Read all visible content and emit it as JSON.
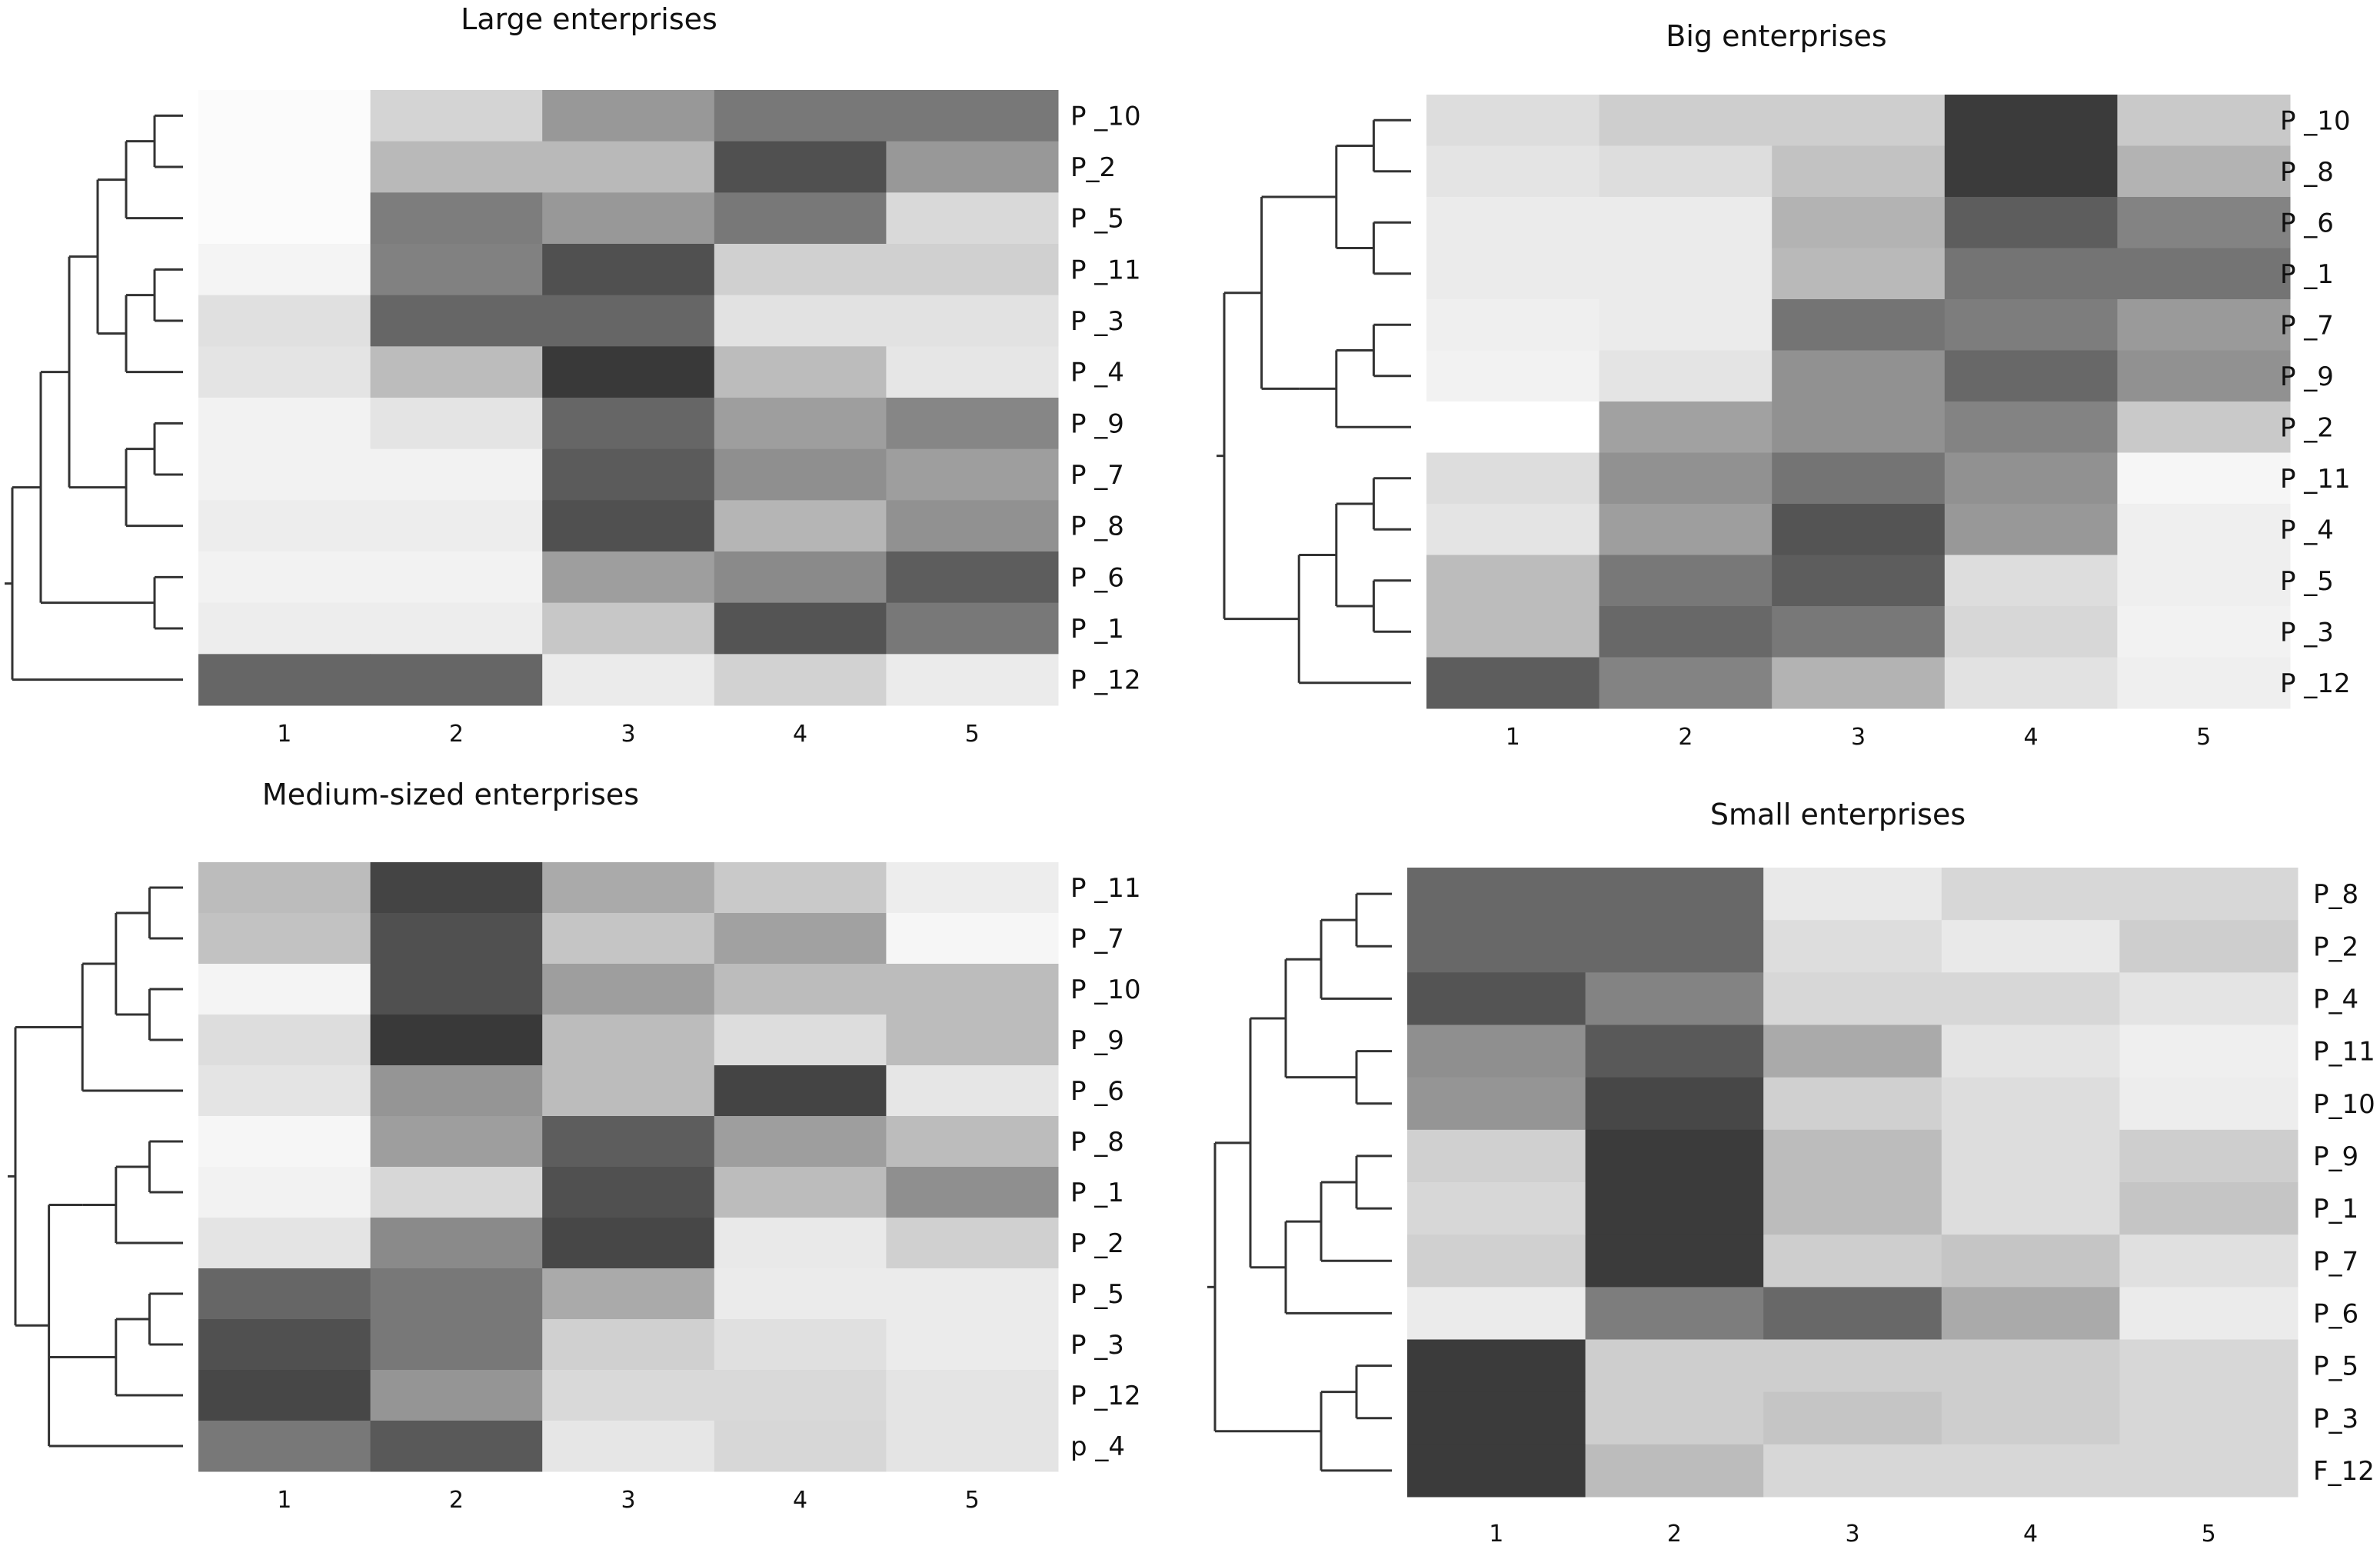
{
  "chart_data": [
    {
      "type": "heatmap",
      "title": "Large enterprises",
      "columns": [
        "1",
        "2",
        "3",
        "4",
        "5"
      ],
      "rows": [
        "P _10",
        "P_2",
        "P _5",
        "P _11",
        "P _3",
        "P _4",
        "P _9",
        "P _7",
        "P _8",
        "P _6",
        "P _1",
        "P _12"
      ],
      "scale": "grayscale intensity 0 (white) to 1 (black)",
      "values": [
        [
          0.02,
          0.19,
          0.46,
          0.6,
          0.6
        ],
        [
          0.02,
          0.31,
          0.31,
          0.78,
          0.46
        ],
        [
          0.02,
          0.58,
          0.46,
          0.6,
          0.17
        ],
        [
          0.05,
          0.56,
          0.78,
          0.21,
          0.21
        ],
        [
          0.14,
          0.68,
          0.68,
          0.13,
          0.13
        ],
        [
          0.12,
          0.3,
          0.88,
          0.3,
          0.11
        ],
        [
          0.06,
          0.12,
          0.68,
          0.43,
          0.54
        ],
        [
          0.06,
          0.06,
          0.73,
          0.5,
          0.43
        ],
        [
          0.08,
          0.08,
          0.78,
          0.33,
          0.49
        ],
        [
          0.06,
          0.06,
          0.43,
          0.52,
          0.72
        ],
        [
          0.08,
          0.08,
          0.25,
          0.76,
          0.6
        ],
        [
          0.68,
          0.68,
          0.09,
          0.2,
          0.09
        ]
      ]
    },
    {
      "type": "heatmap",
      "title": "Big enterprises",
      "columns": [
        "1",
        "2",
        "3",
        "4",
        "5"
      ],
      "rows": [
        "P _10",
        "P _8",
        "P _6",
        "P _1",
        "P _7",
        "P _9",
        "P _2",
        "P _11",
        "P _4",
        "P _5",
        "P _3",
        "P _12"
      ],
      "scale": "grayscale intensity 0 (white) to 1 (black)",
      "values": [
        [
          0.15,
          0.22,
          0.22,
          0.87,
          0.24
        ],
        [
          0.12,
          0.15,
          0.27,
          0.87,
          0.34
        ],
        [
          0.09,
          0.09,
          0.34,
          0.72,
          0.55
        ],
        [
          0.09,
          0.09,
          0.31,
          0.62,
          0.62
        ],
        [
          0.07,
          0.09,
          0.62,
          0.58,
          0.45
        ],
        [
          0.06,
          0.12,
          0.49,
          0.67,
          0.49
        ],
        [
          0.0,
          0.42,
          0.49,
          0.55,
          0.24
        ],
        [
          0.15,
          0.49,
          0.62,
          0.49,
          0.04
        ],
        [
          0.12,
          0.43,
          0.76,
          0.46,
          0.07
        ],
        [
          0.3,
          0.6,
          0.72,
          0.15,
          0.07
        ],
        [
          0.3,
          0.67,
          0.6,
          0.18,
          0.06
        ],
        [
          0.72,
          0.55,
          0.34,
          0.13,
          0.07
        ]
      ]
    },
    {
      "type": "heatmap",
      "title": "Medium-sized enterprises",
      "columns": [
        "1",
        "2",
        "3",
        "4",
        "5"
      ],
      "rows": [
        "P _11",
        "P _7",
        "P _10",
        "P _9",
        "P _6",
        "P _8",
        "P _1",
        "P _2",
        "P _5",
        "P _3",
        "P _12",
        "p _4"
      ],
      "scale": "grayscale intensity 0 (white) to 1 (black)",
      "values": [
        [
          0.3,
          0.83,
          0.38,
          0.24,
          0.08
        ],
        [
          0.27,
          0.78,
          0.26,
          0.42,
          0.04
        ],
        [
          0.05,
          0.78,
          0.43,
          0.3,
          0.3
        ],
        [
          0.15,
          0.88,
          0.3,
          0.15,
          0.3
        ],
        [
          0.12,
          0.47,
          0.3,
          0.83,
          0.11
        ],
        [
          0.04,
          0.43,
          0.72,
          0.43,
          0.3
        ],
        [
          0.06,
          0.18,
          0.78,
          0.3,
          0.5
        ],
        [
          0.12,
          0.52,
          0.82,
          0.1,
          0.21
        ],
        [
          0.68,
          0.6,
          0.38,
          0.09,
          0.09
        ],
        [
          0.78,
          0.6,
          0.21,
          0.14,
          0.09
        ],
        [
          0.82,
          0.47,
          0.17,
          0.17,
          0.12
        ],
        [
          0.6,
          0.74,
          0.11,
          0.18,
          0.12
        ]
      ]
    },
    {
      "type": "heatmap",
      "title": "Small enterprises",
      "columns": [
        "1",
        "2",
        "3",
        "4",
        "5"
      ],
      "rows": [
        "P_8",
        "P_2",
        "P_4",
        "P_11",
        "P_10",
        "P_9",
        "P_1",
        "P_7",
        "P_6",
        "P_5",
        "P_3",
        "F_12"
      ],
      "scale": "grayscale intensity 0 (white) to 1 (black)",
      "values": [
        [
          0.67,
          0.67,
          0.1,
          0.18,
          0.18
        ],
        [
          0.67,
          0.67,
          0.15,
          0.1,
          0.22
        ],
        [
          0.76,
          0.55,
          0.18,
          0.18,
          0.12
        ],
        [
          0.5,
          0.74,
          0.38,
          0.12,
          0.07
        ],
        [
          0.47,
          0.82,
          0.21,
          0.15,
          0.08
        ],
        [
          0.21,
          0.87,
          0.3,
          0.15,
          0.22
        ],
        [
          0.18,
          0.87,
          0.3,
          0.15,
          0.26
        ],
        [
          0.21,
          0.87,
          0.22,
          0.26,
          0.14
        ],
        [
          0.09,
          0.58,
          0.67,
          0.38,
          0.09
        ],
        [
          0.87,
          0.22,
          0.22,
          0.22,
          0.18
        ],
        [
          0.87,
          0.22,
          0.26,
          0.22,
          0.18
        ],
        [
          0.87,
          0.3,
          0.18,
          0.18,
          0.18
        ]
      ]
    }
  ]
}
